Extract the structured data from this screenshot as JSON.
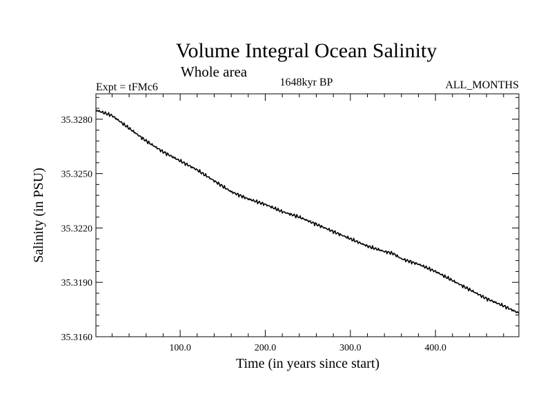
{
  "chart_data": {
    "type": "line",
    "title": "Volume Integral Ocean Salinity",
    "subtitle": "Whole area",
    "left_label": "Expt = tFMc6",
    "center_label": "1648kyr BP",
    "right_label": "ALL_MONTHS",
    "xlabel": "Time (in years since start)",
    "ylabel": "Salinity (in PSU)",
    "xlim": [
      1,
      498
    ],
    "ylim": [
      35.316,
      35.3294
    ],
    "x_ticks": [
      100,
      200,
      300,
      400
    ],
    "x_tick_labels": [
      "100.0",
      "200.0",
      "300.0",
      "400.0"
    ],
    "y_ticks": [
      35.316,
      35.319,
      35.322,
      35.325,
      35.328
    ],
    "y_tick_labels": [
      "35.3160",
      "35.3190",
      "35.3220",
      "35.3250",
      "35.3280"
    ],
    "grid": false,
    "series": [
      {
        "name": "Salinity",
        "color": "#000000",
        "x": [
          1,
          20,
          40,
          60,
          80,
          100,
          120,
          140,
          160,
          180,
          200,
          220,
          240,
          260,
          280,
          300,
          320,
          340,
          350,
          360,
          380,
          400,
          420,
          440,
          460,
          480,
          498
        ],
        "y": [
          35.3285,
          35.3282,
          35.3275,
          35.3268,
          35.3262,
          35.3257,
          35.3252,
          35.3246,
          35.324,
          35.3236,
          35.3233,
          35.3229,
          35.3226,
          35.3222,
          35.3218,
          35.3214,
          35.321,
          35.3207,
          35.3206,
          35.3203,
          35.32,
          35.3196,
          35.3191,
          35.3186,
          35.3181,
          35.3177,
          35.3173
        ]
      }
    ]
  }
}
